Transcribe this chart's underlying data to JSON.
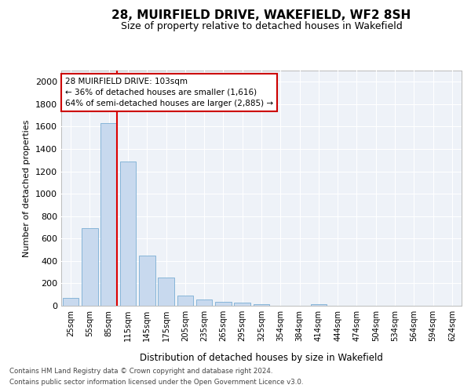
{
  "title": "28, MUIRFIELD DRIVE, WAKEFIELD, WF2 8SH",
  "subtitle": "Size of property relative to detached houses in Wakefield",
  "xlabel": "Distribution of detached houses by size in Wakefield",
  "ylabel": "Number of detached properties",
  "bar_color": "#c8d9ee",
  "bar_edge_color": "#7aadd4",
  "highlight_line_color": "#dd0000",
  "categories": [
    "25sqm",
    "55sqm",
    "85sqm",
    "115sqm",
    "145sqm",
    "175sqm",
    "205sqm",
    "235sqm",
    "265sqm",
    "295sqm",
    "325sqm",
    "354sqm",
    "384sqm",
    "414sqm",
    "444sqm",
    "474sqm",
    "504sqm",
    "534sqm",
    "564sqm",
    "594sqm",
    "624sqm"
  ],
  "values": [
    68,
    695,
    1630,
    1285,
    445,
    252,
    88,
    55,
    38,
    28,
    14,
    0,
    0,
    14,
    0,
    0,
    0,
    0,
    0,
    0,
    0
  ],
  "ylim": [
    0,
    2100
  ],
  "yticks": [
    0,
    200,
    400,
    600,
    800,
    1000,
    1200,
    1400,
    1600,
    1800,
    2000
  ],
  "highlight_bar_index": 2,
  "annotation_text": "28 MUIRFIELD DRIVE: 103sqm\n← 36% of detached houses are smaller (1,616)\n64% of semi-detached houses are larger (2,885) →",
  "annotation_box_color": "#ffffff",
  "annotation_box_edge_color": "#cc0000",
  "footer_line1": "Contains HM Land Registry data © Crown copyright and database right 2024.",
  "footer_line2": "Contains public sector information licensed under the Open Government Licence v3.0.",
  "background_color": "#ffffff",
  "plot_bg_color": "#eef2f8",
  "grid_color": "#ffffff"
}
